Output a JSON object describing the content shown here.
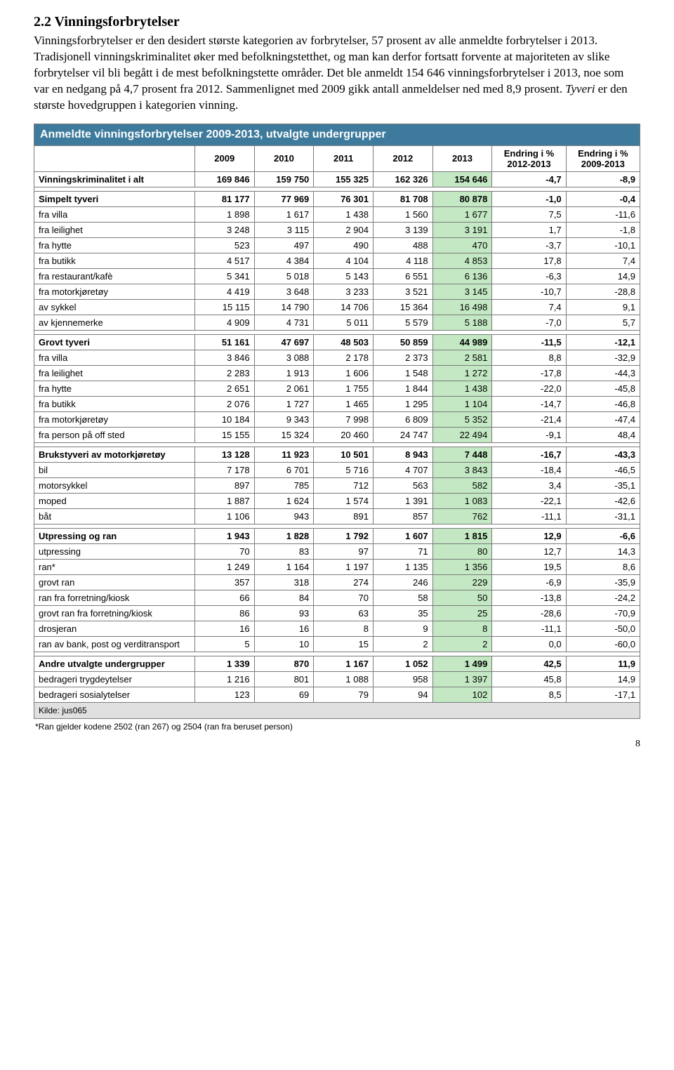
{
  "heading": "2.2 Vinningsforbrytelser",
  "paragraph_parts": {
    "p1": "Vinningsforbrytelser er den desidert største kategorien av forbrytelser, 57 prosent av alle anmeldte forbrytelser i 2013. Tradisjonell vinningskriminalitet øker med befolkningstetthet, og man kan derfor fortsatt forvente at majoriteten av slike forbrytelser vil bli begått i de mest befolkningstette områder. Det ble anmeldt 154 646 vinningsforbrytelser i 2013, noe som var en nedgang på 4,7 prosent fra 2012. Sammenlignet med 2009 gikk antall anmeldelser ned med 8,9 prosent. ",
    "italic": "Tyveri",
    "p2": " er den største hovedgruppen i kategorien vinning."
  },
  "table": {
    "title": "Anmeldte vinningsforbrytelser 2009-2013, utvalgte undergrupper",
    "columns": [
      "",
      "2009",
      "2010",
      "2011",
      "2012",
      "2013",
      "Endring i % 2012-2013",
      "Endring i % 2009-2013"
    ],
    "col_widths": [
      "200px",
      "74px",
      "74px",
      "74px",
      "74px",
      "74px",
      "92px",
      "92px"
    ],
    "highlight_col": 5,
    "rows": [
      {
        "type": "section",
        "cells": [
          "Vinningskriminalitet i alt",
          "169 846",
          "159 750",
          "155 325",
          "162 326",
          "154 646",
          "-4,7",
          "-8,9"
        ]
      },
      {
        "type": "blank"
      },
      {
        "type": "section",
        "cells": [
          "Simpelt tyveri",
          "81 177",
          "77 969",
          "76 301",
          "81 708",
          "80 878",
          "-1,0",
          "-0,4"
        ]
      },
      {
        "type": "data",
        "cells": [
          "fra villa",
          "1 898",
          "1 617",
          "1 438",
          "1 560",
          "1 677",
          "7,5",
          "-11,6"
        ]
      },
      {
        "type": "data",
        "cells": [
          "fra leilighet",
          "3 248",
          "3 115",
          "2 904",
          "3 139",
          "3 191",
          "1,7",
          "-1,8"
        ]
      },
      {
        "type": "data",
        "cells": [
          "fra hytte",
          "523",
          "497",
          "490",
          "488",
          "470",
          "-3,7",
          "-10,1"
        ]
      },
      {
        "type": "data",
        "cells": [
          "fra butikk",
          "4 517",
          "4 384",
          "4 104",
          "4 118",
          "4 853",
          "17,8",
          "7,4"
        ]
      },
      {
        "type": "data",
        "cells": [
          "fra restaurant/kafè",
          "5 341",
          "5 018",
          "5 143",
          "6 551",
          "6 136",
          "-6,3",
          "14,9"
        ]
      },
      {
        "type": "data",
        "cells": [
          "fra motorkjøretøy",
          "4 419",
          "3 648",
          "3 233",
          "3 521",
          "3 145",
          "-10,7",
          "-28,8"
        ]
      },
      {
        "type": "data",
        "cells": [
          "av sykkel",
          "15 115",
          "14 790",
          "14 706",
          "15 364",
          "16 498",
          "7,4",
          "9,1"
        ]
      },
      {
        "type": "data",
        "cells": [
          "av kjennemerke",
          "4 909",
          "4 731",
          "5 011",
          "5 579",
          "5 188",
          "-7,0",
          "5,7"
        ]
      },
      {
        "type": "blank"
      },
      {
        "type": "section",
        "cells": [
          "Grovt tyveri",
          "51 161",
          "47 697",
          "48 503",
          "50 859",
          "44 989",
          "-11,5",
          "-12,1"
        ]
      },
      {
        "type": "data",
        "cells": [
          "fra villa",
          "3 846",
          "3 088",
          "2 178",
          "2 373",
          "2 581",
          "8,8",
          "-32,9"
        ]
      },
      {
        "type": "data",
        "cells": [
          "fra leilighet",
          "2 283",
          "1 913",
          "1 606",
          "1 548",
          "1 272",
          "-17,8",
          "-44,3"
        ]
      },
      {
        "type": "data",
        "cells": [
          "fra hytte",
          "2 651",
          "2 061",
          "1 755",
          "1 844",
          "1 438",
          "-22,0",
          "-45,8"
        ]
      },
      {
        "type": "data",
        "cells": [
          "fra butikk",
          "2 076",
          "1 727",
          "1 465",
          "1 295",
          "1 104",
          "-14,7",
          "-46,8"
        ]
      },
      {
        "type": "data",
        "cells": [
          "fra motorkjøretøy",
          "10 184",
          "9 343",
          "7 998",
          "6 809",
          "5 352",
          "-21,4",
          "-47,4"
        ]
      },
      {
        "type": "data",
        "cells": [
          "fra person på off sted",
          "15 155",
          "15 324",
          "20 460",
          "24 747",
          "22 494",
          "-9,1",
          "48,4"
        ]
      },
      {
        "type": "blank"
      },
      {
        "type": "section",
        "cells": [
          "Brukstyveri av motorkjøretøy",
          "13 128",
          "11 923",
          "10 501",
          "8 943",
          "7 448",
          "-16,7",
          "-43,3"
        ]
      },
      {
        "type": "data",
        "cells": [
          "bil",
          "7 178",
          "6 701",
          "5 716",
          "4 707",
          "3 843",
          "-18,4",
          "-46,5"
        ]
      },
      {
        "type": "data",
        "cells": [
          "motorsykkel",
          "897",
          "785",
          "712",
          "563",
          "582",
          "3,4",
          "-35,1"
        ]
      },
      {
        "type": "data",
        "cells": [
          "moped",
          "1 887",
          "1 624",
          "1 574",
          "1 391",
          "1 083",
          "-22,1",
          "-42,6"
        ]
      },
      {
        "type": "data",
        "cells": [
          "båt",
          "1 106",
          "943",
          "891",
          "857",
          "762",
          "-11,1",
          "-31,1"
        ]
      },
      {
        "type": "blank"
      },
      {
        "type": "section",
        "cells": [
          "Utpressing og ran",
          "1 943",
          "1 828",
          "1 792",
          "1 607",
          "1 815",
          "12,9",
          "-6,6"
        ]
      },
      {
        "type": "data",
        "cells": [
          "utpressing",
          "70",
          "83",
          "97",
          "71",
          "80",
          "12,7",
          "14,3"
        ]
      },
      {
        "type": "data",
        "cells": [
          "ran*",
          "1 249",
          "1 164",
          "1 197",
          "1 135",
          "1 356",
          "19,5",
          "8,6"
        ]
      },
      {
        "type": "data",
        "cells": [
          "grovt ran",
          "357",
          "318",
          "274",
          "246",
          "229",
          "-6,9",
          "-35,9"
        ]
      },
      {
        "type": "data",
        "cells": [
          "ran fra forretning/kiosk",
          "66",
          "84",
          "70",
          "58",
          "50",
          "-13,8",
          "-24,2"
        ]
      },
      {
        "type": "data",
        "cells": [
          "grovt ran fra forretning/kiosk",
          "86",
          "93",
          "63",
          "35",
          "25",
          "-28,6",
          "-70,9"
        ]
      },
      {
        "type": "data",
        "cells": [
          "drosjeran",
          "16",
          "16",
          "8",
          "9",
          "8",
          "-11,1",
          "-50,0"
        ]
      },
      {
        "type": "data",
        "cells": [
          "ran av bank, post og verditransport",
          "5",
          "10",
          "15",
          "2",
          "2",
          "0,0",
          "-60,0"
        ]
      },
      {
        "type": "blank"
      },
      {
        "type": "section",
        "cells": [
          "Andre utvalgte undergrupper",
          "1 339",
          "870",
          "1 167",
          "1 052",
          "1 499",
          "42,5",
          "11,9"
        ]
      },
      {
        "type": "data",
        "cells": [
          "bedrageri trygdeytelser",
          "1 216",
          "801",
          "1 088",
          "958",
          "1 397",
          "45,8",
          "14,9"
        ]
      },
      {
        "type": "data",
        "cells": [
          "bedrageri sosialytelser",
          "123",
          "69",
          "79",
          "94",
          "102",
          "8,5",
          "-17,1"
        ]
      }
    ],
    "source": "Kilde: jus065",
    "footnote": "*Ran gjelder kodene 2502   (ran  267)    og 2504  (ran fra beruset person)"
  },
  "page_number": "8",
  "colors": {
    "header_bg": "#3d7a9c",
    "header_fg": "#ffffff",
    "border": "#7b7b7b",
    "highlight": "#c3e8c3",
    "source_bg": "#e0e0e0"
  }
}
